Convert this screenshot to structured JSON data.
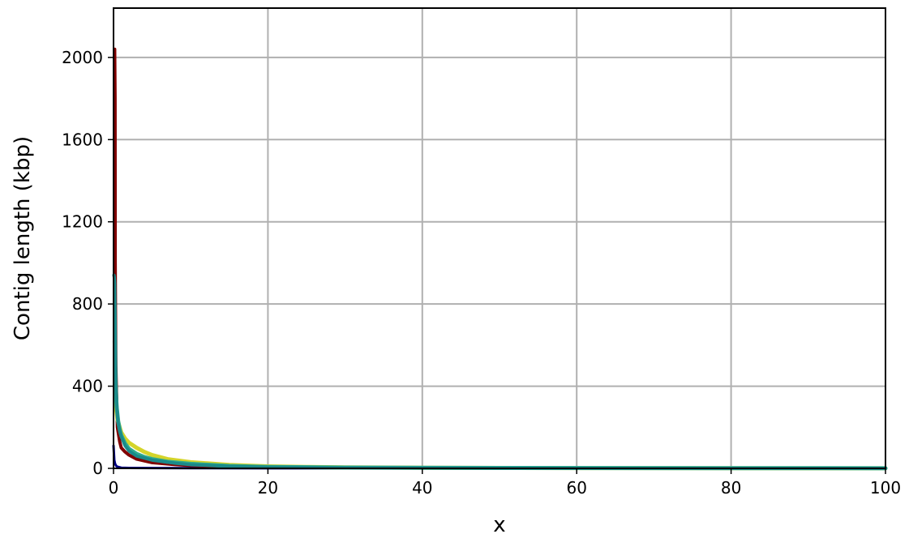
{
  "chart_data": {
    "type": "line",
    "title": "",
    "xlabel": "x",
    "ylabel": "Contig length (kbp)",
    "xlim": [
      0,
      100
    ],
    "ylim": [
      0,
      2240
    ],
    "grid": true,
    "legend": "none",
    "xticks": [
      0,
      20,
      40,
      60,
      80,
      100
    ],
    "xtick_labels": [
      "0",
      "20",
      "40",
      "60",
      "80",
      "100"
    ],
    "yticks": [
      0,
      400,
      800,
      1200,
      1600,
      2000
    ],
    "ytick_labels": [
      "0",
      "400",
      "800",
      "1200",
      "1600",
      "2000"
    ],
    "series": [
      {
        "color": "#000080",
        "width": 3,
        "x": [
          0,
          0.1,
          0.2,
          0.35,
          0.5,
          0.8,
          1,
          2,
          5,
          10,
          20,
          40,
          70,
          100
        ],
        "y": [
          110,
          40,
          22,
          12,
          8,
          5,
          3,
          2,
          1.5,
          1,
          0.5,
          0.3,
          0.2,
          0.1
        ]
      },
      {
        "color": "#800000",
        "width": 4,
        "x": [
          0.1,
          0.15,
          0.2,
          0.22,
          0.25,
          0.3,
          0.5,
          0.8,
          1,
          1.5,
          2,
          3,
          5,
          8,
          10,
          15,
          20,
          30,
          50,
          100
        ],
        "y": [
          2040,
          2040,
          1800,
          1000,
          800,
          500,
          200,
          130,
          100,
          80,
          65,
          45,
          28,
          18,
          14,
          9,
          6,
          3,
          1.5,
          0.5
        ]
      },
      {
        "color": "#d4d42a",
        "width": 5,
        "x": [
          0.2,
          0.3,
          0.5,
          0.8,
          1,
          1.5,
          2,
          3,
          4,
          5,
          7,
          10,
          15,
          20,
          25,
          30,
          40,
          60,
          100
        ],
        "y": [
          400,
          300,
          240,
          200,
          175,
          145,
          125,
          100,
          80,
          65,
          45,
          30,
          17,
          10,
          7,
          5,
          3,
          1.5,
          0.5
        ]
      },
      {
        "color": "#2eaa8e",
        "width": 5,
        "x": [
          0.15,
          0.25,
          0.4,
          0.6,
          0.8,
          1,
          1.5,
          2,
          3,
          4,
          5,
          7,
          10,
          15,
          20,
          30,
          50,
          100
        ],
        "y": [
          620,
          420,
          300,
          230,
          190,
          160,
          120,
          95,
          70,
          55,
          45,
          32,
          22,
          12,
          7,
          4,
          2,
          0.5
        ]
      },
      {
        "color": "#1a8a8a",
        "width": 4,
        "x": [
          0.05,
          0.1,
          0.15,
          0.2,
          0.25,
          0.3,
          0.4,
          0.5,
          0.6,
          0.8,
          1,
          1.5,
          2,
          3,
          5,
          8,
          10,
          15,
          20,
          30,
          50,
          100
        ],
        "y": [
          940,
          930,
          900,
          750,
          600,
          400,
          320,
          260,
          220,
          180,
          155,
          110,
          85,
          60,
          40,
          25,
          18,
          10,
          6,
          3,
          1.5,
          0.5
        ]
      }
    ]
  }
}
